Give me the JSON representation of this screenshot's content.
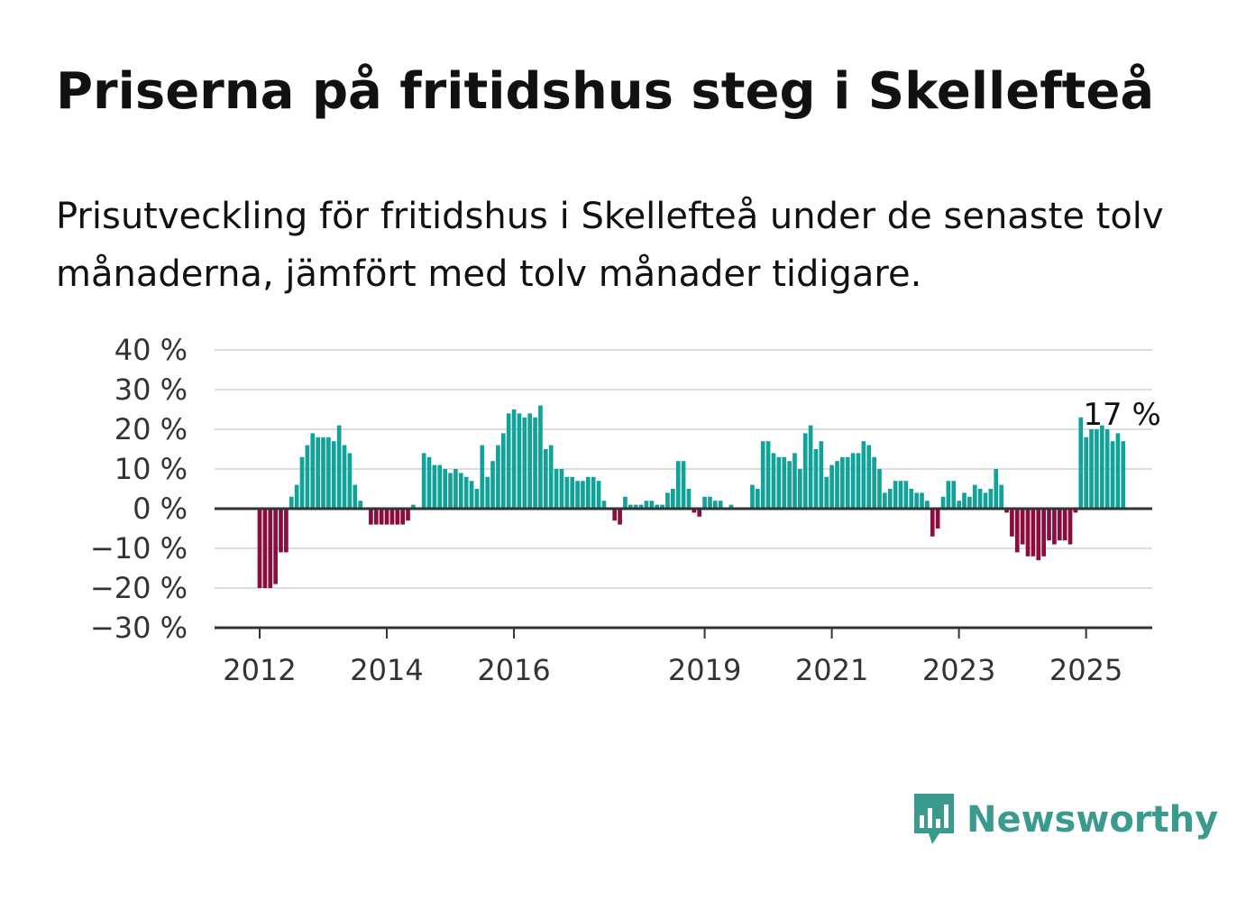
{
  "title": "Priserna på fritidshus steg i Skellefteå",
  "subtitle": "Prisutveckling för fritidshus i Skellefteå under de senaste tolv månaderna, jämfört med tolv månader tidigare.",
  "logo": {
    "text": "Newsworthy",
    "icon": "newsworthy-logo-icon",
    "color": "#3a9a8e"
  },
  "colors": {
    "positive": "#11a29a",
    "negative": "#8c0c3e",
    "grid": "#dddddd",
    "axis": "#333333"
  },
  "chart_data": {
    "type": "bar",
    "x_start": "2012-01",
    "interval": "month",
    "x_ticks": [
      "2012",
      "2014",
      "2016",
      "2019",
      "2021",
      "2023",
      "2025"
    ],
    "y_ticks": [
      "40 %",
      "30 %",
      "20 %",
      "10 %",
      "0 %",
      "−10 %",
      "−20 %",
      "−30 %"
    ],
    "ylim": [
      -30,
      40
    ],
    "unit": "%",
    "grid": true,
    "last_value_label": "17 %",
    "values": [
      -20,
      -20,
      -20,
      -19,
      -11,
      -11,
      3,
      6,
      13,
      16,
      19,
      18,
      18,
      18,
      17,
      21,
      16,
      14,
      6,
      2,
      0,
      -4,
      -4,
      -4,
      -4,
      -4,
      -4,
      -4,
      -3,
      1,
      0,
      14,
      13,
      11,
      11,
      10,
      9,
      10,
      9,
      8,
      7,
      5,
      16,
      8,
      12,
      16,
      19,
      24,
      25,
      24,
      23,
      24,
      23,
      26,
      15,
      16,
      10,
      10,
      8,
      8,
      7,
      7,
      8,
      8,
      7,
      2,
      0,
      -3,
      -4,
      3,
      1,
      1,
      1,
      2,
      2,
      1,
      1,
      4,
      5,
      12,
      12,
      5,
      -1,
      -2,
      3,
      3,
      2,
      2,
      0,
      1,
      0,
      0,
      0,
      6,
      5,
      17,
      17,
      14,
      13,
      13,
      12,
      14,
      10,
      19,
      21,
      15,
      17,
      8,
      11,
      12,
      13,
      13,
      14,
      14,
      17,
      16,
      13,
      10,
      4,
      5,
      7,
      7,
      7,
      5,
      4,
      4,
      2,
      -7,
      -5,
      3,
      7,
      7,
      2,
      4,
      3,
      6,
      5,
      4,
      5,
      10,
      6,
      -1,
      -7,
      -11,
      -9,
      -12,
      -12,
      -13,
      -12,
      -8,
      -9,
      -8,
      -8,
      -9,
      -1,
      23,
      18,
      20,
      20,
      21,
      20,
      17,
      19,
      17
    ]
  }
}
